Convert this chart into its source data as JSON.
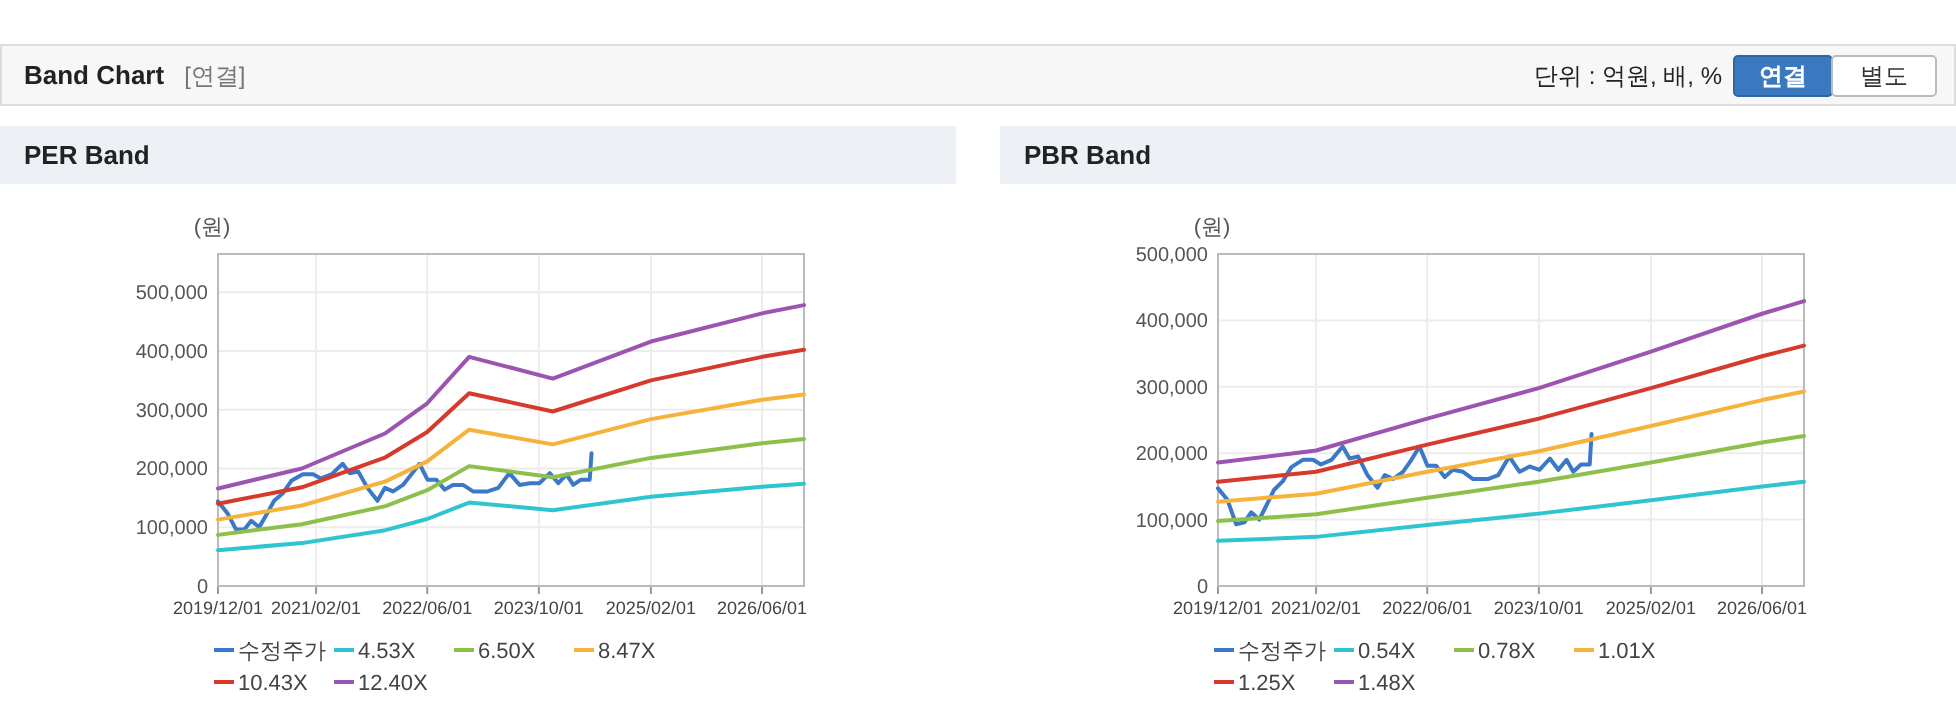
{
  "chart_data": [
    {
      "type": "other",
      "title": "Band Chart",
      "annotations": [
        "[연결]",
        "단위 : 억원, 배, %",
        "연결",
        "별도"
      ]
    },
    {
      "type": "line",
      "title": "PER Band",
      "ylabel": "(원)",
      "xlim": [
        "2019-12-01",
        "2026-12-01"
      ],
      "xticks": [
        {
          "value": "2019-12-01",
          "label": "2019/12/01"
        },
        {
          "value": "2021-02-01",
          "label": "2021/02/01"
        },
        {
          "value": "2022-06-01",
          "label": "2022/06/01"
        },
        {
          "value": "2023-10-01",
          "label": "2023/10/01"
        },
        {
          "value": "2025-02-01",
          "label": "2025/02/01"
        },
        {
          "value": "2026-06-01",
          "label": "2026/06/01"
        }
      ],
      "ylim": [
        0,
        565000
      ],
      "yticks": [
        0,
        {
          "value": 100000,
          "label": "100,000"
        },
        {
          "value": 200000,
          "label": "200,000"
        },
        {
          "value": 300000,
          "label": "300,000"
        },
        {
          "value": 400000,
          "label": "400,000"
        },
        {
          "value": 500000,
          "label": "500,000"
        }
      ],
      "grid": true,
      "legend": "bottom",
      "marker": "none",
      "line_style": "solid",
      "series": [
        {
          "name": "수정주가",
          "color": "#3c78c8",
          "x": [
            "2019-12-01",
            "2020-01-11",
            "2020-02-18",
            "2020-03-25",
            "2020-04-24",
            "2020-05-29",
            "2020-07-03",
            "2020-08-02",
            "2020-09-09",
            "2020-10-16",
            "2020-12-05",
            "2021-01-19",
            "2021-02-22",
            "2021-04-09",
            "2021-05-28",
            "2021-06-27",
            "2021-08-04",
            "2021-09-13",
            "2021-10-27",
            "2021-11-28",
            "2022-01-03",
            "2022-02-15",
            "2022-03-24",
            "2022-04-28",
            "2022-06-02",
            "2022-07-10",
            "2022-08-16",
            "2022-09-21",
            "2022-11-04",
            "2022-12-18",
            "2023-02-20",
            "2023-04-07",
            "2023-05-25",
            "2023-07-09",
            "2023-08-22",
            "2023-10-04",
            "2023-11-18",
            "2023-12-25",
            "2024-01-30",
            "2024-02-28",
            "2024-04-02",
            "2024-05-10",
            "2024-05-18"
          ],
          "values": [
            144000,
            124000,
            96000,
            96000,
            111000,
            100000,
            124000,
            145000,
            158000,
            179000,
            190000,
            190000,
            183000,
            190000,
            208000,
            192000,
            195000,
            167000,
            145000,
            167000,
            161000,
            172000,
            190000,
            208000,
            181000,
            181000,
            164000,
            172000,
            172000,
            161000,
            161000,
            167000,
            192000,
            172000,
            175000,
            175000,
            192000,
            175000,
            190000,
            172000,
            181000,
            181000,
            226000
          ]
        },
        {
          "name": "4.53X",
          "color": "#2ec4d0",
          "x": [
            "2019-12-01",
            "2020-12-01",
            "2021-12-01",
            "2022-06-01",
            "2022-12-01",
            "2023-12-01",
            "2025-02-01",
            "2026-06-01",
            "2026-12-01"
          ],
          "values": [
            61000,
            73000,
            95000,
            114000,
            142000,
            129000,
            152000,
            169000,
            174000
          ]
        },
        {
          "name": "6.50X",
          "color": "#8dc04a",
          "x": [
            "2019-12-01",
            "2020-12-01",
            "2021-12-01",
            "2022-06-01",
            "2022-12-01",
            "2023-12-01",
            "2025-02-01",
            "2026-06-01",
            "2026-12-01"
          ],
          "values": [
            87000,
            105000,
            136000,
            163000,
            204000,
            185000,
            218000,
            243000,
            250000
          ]
        },
        {
          "name": "8.47X",
          "color": "#f5b33b",
          "x": [
            "2019-12-01",
            "2020-12-01",
            "2021-12-01",
            "2022-06-01",
            "2022-12-01",
            "2023-12-01",
            "2025-02-01",
            "2026-06-01",
            "2026-12-01"
          ],
          "values": [
            113000,
            137000,
            178000,
            212000,
            266000,
            241000,
            284000,
            317000,
            326000
          ]
        },
        {
          "name": "10.43X",
          "color": "#d63a2c",
          "x": [
            "2019-12-01",
            "2020-12-01",
            "2021-12-01",
            "2022-06-01",
            "2022-12-01",
            "2023-12-01",
            "2025-02-01",
            "2026-06-01",
            "2026-12-01"
          ],
          "values": [
            140000,
            168000,
            219000,
            262000,
            328000,
            297000,
            350000,
            390000,
            402000
          ]
        },
        {
          "name": "12.40X",
          "color": "#9b55b0",
          "x": [
            "2019-12-01",
            "2020-12-01",
            "2021-12-01",
            "2022-06-01",
            "2022-12-01",
            "2023-12-01",
            "2025-02-01",
            "2026-06-01",
            "2026-12-01"
          ],
          "values": [
            166000,
            200000,
            260000,
            311000,
            390000,
            353000,
            416000,
            464000,
            478000
          ]
        }
      ]
    },
    {
      "type": "line",
      "title": "PBR Band",
      "ylabel": "(원)",
      "xlim": [
        "2019-12-01",
        "2026-12-01"
      ],
      "xticks": [
        {
          "value": "2019-12-01",
          "label": "2019/12/01"
        },
        {
          "value": "2021-02-01",
          "label": "2021/02/01"
        },
        {
          "value": "2022-06-01",
          "label": "2022/06/01"
        },
        {
          "value": "2023-10-01",
          "label": "2023/10/01"
        },
        {
          "value": "2025-02-01",
          "label": "2025/02/01"
        },
        {
          "value": "2026-06-01",
          "label": "2026/06/01"
        }
      ],
      "ylim": [
        0,
        500000
      ],
      "yticks": [
        0,
        {
          "value": 100000,
          "label": "100,000"
        },
        {
          "value": 200000,
          "label": "200,000"
        },
        {
          "value": 300000,
          "label": "300,000"
        },
        {
          "value": 400000,
          "label": "400,000"
        },
        {
          "value": 500000,
          "label": "500,000"
        }
      ],
      "grid": true,
      "legend": "bottom",
      "marker": "none",
      "line_style": "solid",
      "series": [
        {
          "name": "수정주가",
          "color": "#3c78c8",
          "x": [
            "2019-12-01",
            "2020-01-11",
            "2020-02-18",
            "2020-03-25",
            "2020-04-24",
            "2020-05-29",
            "2020-07-03",
            "2020-08-02",
            "2020-09-09",
            "2020-10-16",
            "2020-12-05",
            "2021-01-19",
            "2021-02-22",
            "2021-04-09",
            "2021-05-28",
            "2021-06-27",
            "2021-08-04",
            "2021-09-13",
            "2021-10-27",
            "2021-11-28",
            "2022-01-03",
            "2022-02-15",
            "2022-03-24",
            "2022-04-28",
            "2022-06-02",
            "2022-07-10",
            "2022-08-16",
            "2022-09-21",
            "2022-11-04",
            "2022-12-18",
            "2023-02-20",
            "2023-04-07",
            "2023-05-25",
            "2023-07-09",
            "2023-08-22",
            "2023-10-04",
            "2023-11-18",
            "2023-12-25",
            "2024-01-30",
            "2024-02-28",
            "2024-04-02",
            "2024-05-10",
            "2024-05-18"
          ],
          "values": [
            147000,
            130000,
            93000,
            96000,
            111000,
            100000,
            124000,
            145000,
            158000,
            179000,
            190000,
            190000,
            183000,
            190000,
            210000,
            192000,
            195000,
            167000,
            148000,
            167000,
            161000,
            172000,
            190000,
            210000,
            181000,
            181000,
            164000,
            175000,
            172000,
            161000,
            161000,
            167000,
            195000,
            172000,
            180000,
            175000,
            192000,
            175000,
            190000,
            172000,
            183000,
            183000,
            229000
          ]
        },
        {
          "name": "0.54X",
          "color": "#2ec4d0",
          "x": [
            "2019-12-01",
            "2021-02-01",
            "2022-06-01",
            "2023-10-01",
            "2025-02-01",
            "2026-06-01",
            "2026-12-01"
          ],
          "values": [
            68000,
            74000,
            92000,
            109000,
            129000,
            150000,
            157000
          ]
        },
        {
          "name": "0.78X",
          "color": "#8dc04a",
          "x": [
            "2019-12-01",
            "2021-02-01",
            "2022-06-01",
            "2023-10-01",
            "2025-02-01",
            "2026-06-01",
            "2026-12-01"
          ],
          "values": [
            98000,
            108000,
            133000,
            157000,
            186000,
            216000,
            226000
          ]
        },
        {
          "name": "1.01X",
          "color": "#f5b33b",
          "x": [
            "2019-12-01",
            "2021-02-01",
            "2022-06-01",
            "2023-10-01",
            "2025-02-01",
            "2026-06-01",
            "2026-12-01"
          ],
          "values": [
            127000,
            139000,
            172000,
            203000,
            241000,
            280000,
            293000
          ]
        },
        {
          "name": "1.25X",
          "color": "#d63a2c",
          "x": [
            "2019-12-01",
            "2021-02-01",
            "2022-06-01",
            "2023-10-01",
            "2025-02-01",
            "2026-06-01",
            "2026-12-01"
          ],
          "values": [
            157000,
            172000,
            213000,
            252000,
            298000,
            346000,
            362000
          ]
        },
        {
          "name": "1.48X",
          "color": "#9b55b0",
          "x": [
            "2019-12-01",
            "2021-02-01",
            "2022-06-01",
            "2023-10-01",
            "2025-02-01",
            "2026-06-01",
            "2026-12-01"
          ],
          "values": [
            186000,
            204000,
            252000,
            298000,
            353000,
            410000,
            429000
          ]
        }
      ]
    }
  ]
}
